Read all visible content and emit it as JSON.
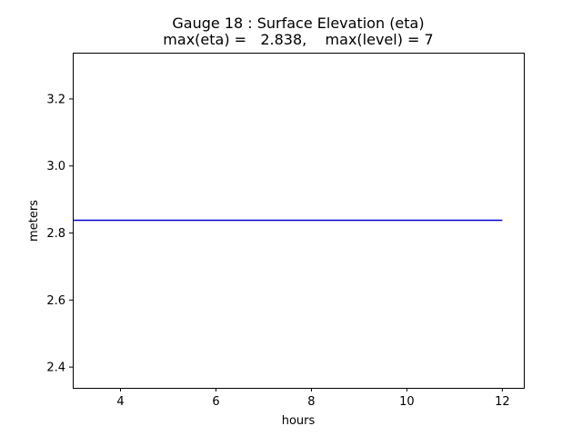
{
  "chart_data": {
    "type": "line",
    "title_lines": [
      "Gauge 18 : Surface Elevation (eta)",
      "max(eta) =   2.838,    max(level) = 7"
    ],
    "xlabel": "hours",
    "ylabel": "meters",
    "xlim": [
      3.0,
      12.45
    ],
    "ylim": [
      2.338,
      3.338
    ],
    "xticks": [
      4,
      6,
      8,
      10,
      12
    ],
    "yticks": [
      2.4,
      2.6,
      2.8,
      3.0,
      3.2
    ],
    "ytick_labels": [
      "2.4",
      "2.6",
      "2.8",
      "3.0",
      "3.2"
    ],
    "grid": false,
    "series": [
      {
        "color": "#0000cc",
        "x": [
          3.0,
          12.0
        ],
        "y": [
          2.838,
          2.838
        ]
      }
    ]
  }
}
